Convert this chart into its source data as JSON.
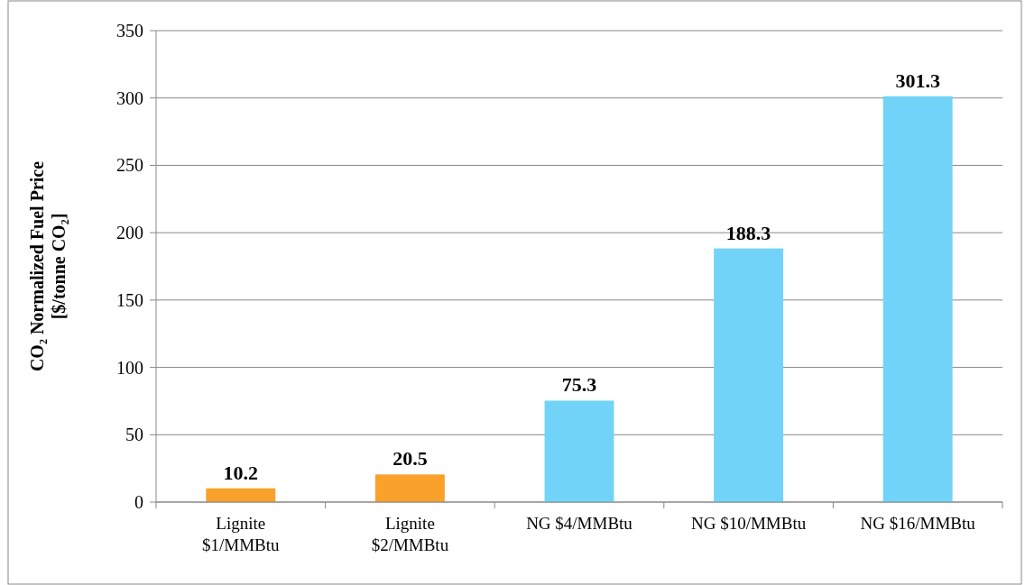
{
  "chart_data": {
    "type": "bar",
    "ylabel": "CO₂ Normalized Fuel Price\n[$/tonne CO₂]",
    "categories": [
      "Lignite $1/MMBtu",
      "Lignite $2/MMBtu",
      "NG $4/MMBtu",
      "NG $10/MMBtu",
      "NG $16/MMBtu"
    ],
    "values": [
      10.2,
      20.5,
      75.3,
      188.3,
      301.3
    ],
    "colors": [
      "#f9a12a",
      "#f9a12a",
      "#72d3f9",
      "#72d3f9",
      "#72d3f9"
    ],
    "ylim": [
      0,
      350
    ],
    "yticks": [
      0,
      50,
      100,
      150,
      200,
      250,
      300,
      350
    ],
    "grid": "y",
    "data_labels": true
  }
}
